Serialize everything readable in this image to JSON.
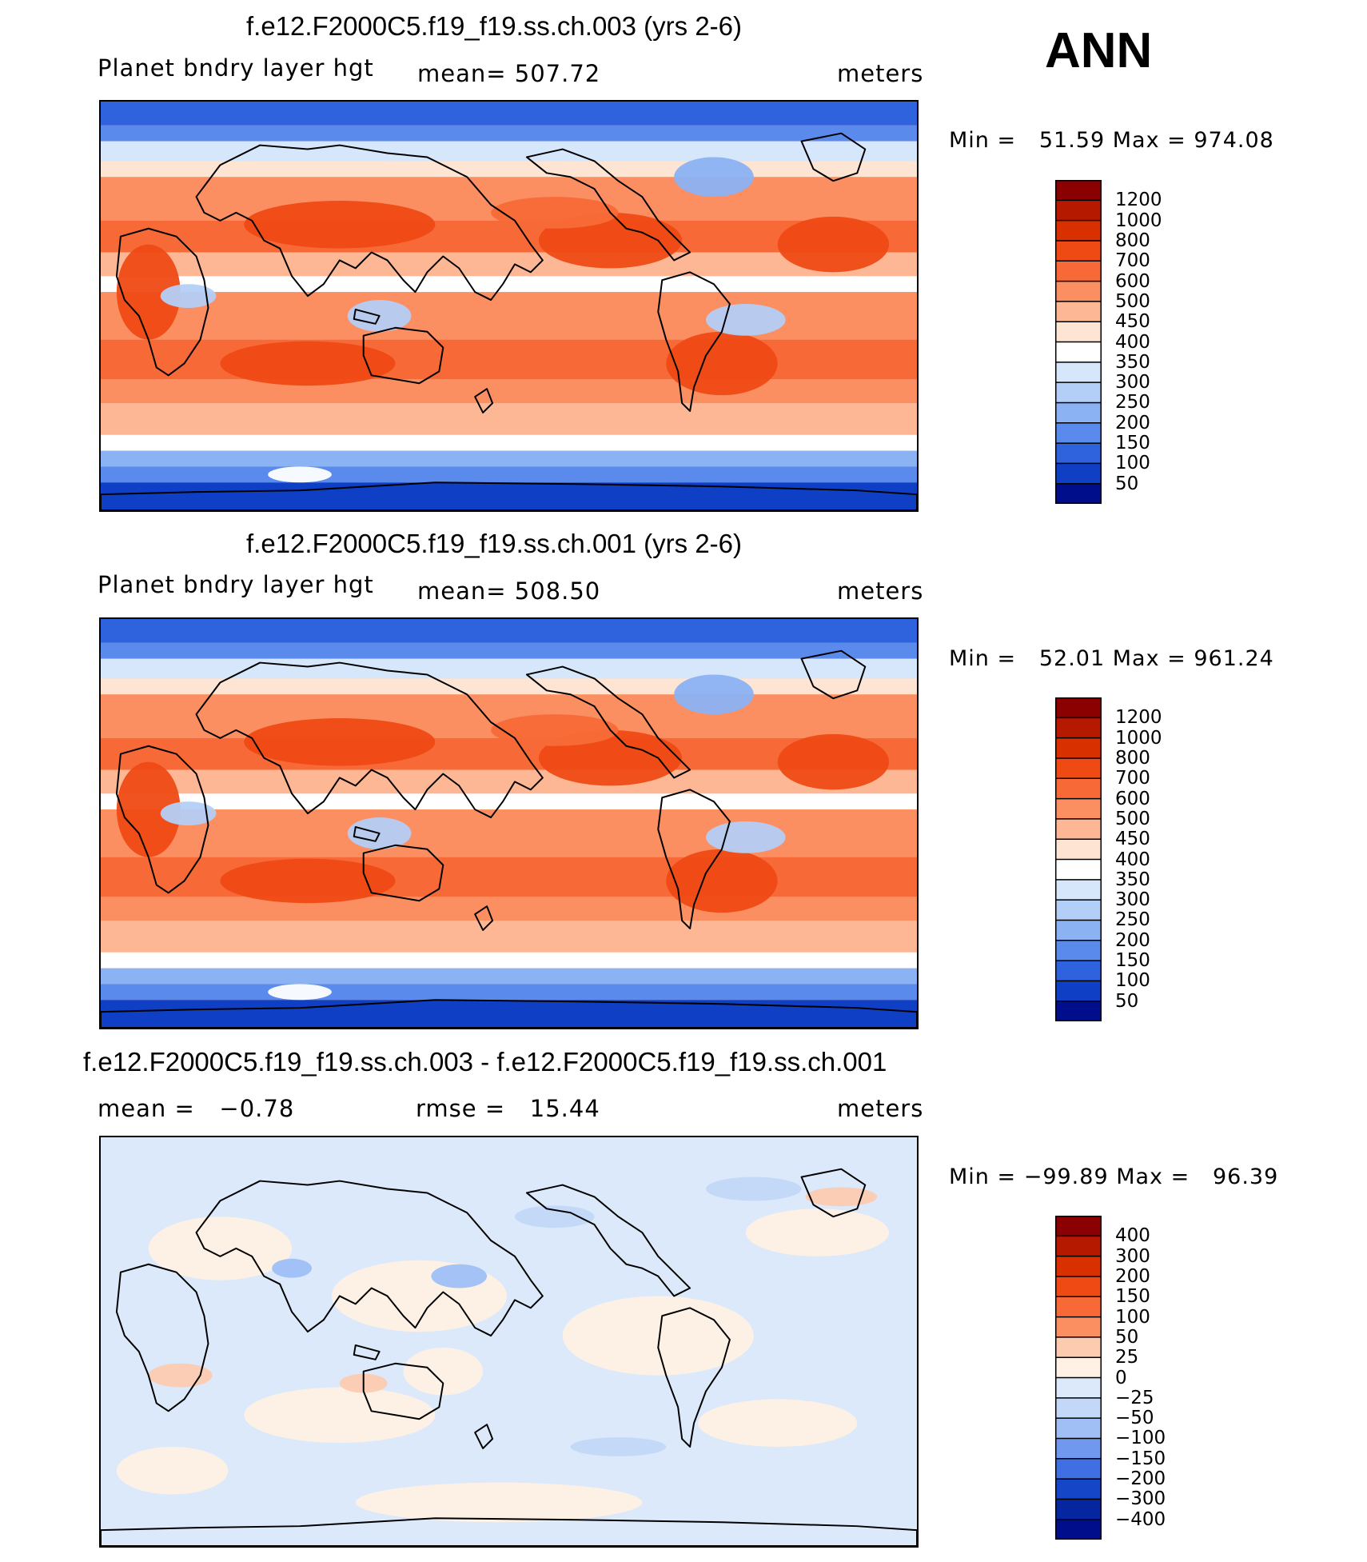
{
  "season": "ANN",
  "chart_data": [
    {
      "type": "heatmap",
      "title": "f.e12.F2000C5.f19_f19.ss.ch.003 (yrs 2-6)",
      "variable": "Planet bndry layer hgt",
      "mean_label": "mean= 507.72",
      "units": "meters",
      "minmax_label": "Min =   51.59 Max = 974.08",
      "min": 51.59,
      "max": 974.08,
      "colorbar_labels": [
        "1200",
        "1000",
        "800",
        "700",
        "600",
        "500",
        "450",
        "400",
        "350",
        "300",
        "250",
        "200",
        "150",
        "100",
        "50"
      ],
      "colorbar_colors": [
        "#8b0000",
        "#b51a00",
        "#d93000",
        "#ef4a14",
        "#f76a37",
        "#fb8f62",
        "#fdb795",
        "#fee4d2",
        "#ffffff",
        "#d6e6fb",
        "#b4cff7",
        "#8bb2f3",
        "#5a8bec",
        "#2f63de",
        "#0e3fc4",
        "#000e8c"
      ],
      "field_style": "absolute"
    },
    {
      "type": "heatmap",
      "title": "f.e12.F2000C5.f19_f19.ss.ch.001 (yrs 2-6)",
      "variable": "Planet bndry layer hgt",
      "mean_label": "mean= 508.50",
      "units": "meters",
      "minmax_label": "Min =   52.01 Max = 961.24",
      "min": 52.01,
      "max": 961.24,
      "colorbar_labels": [
        "1200",
        "1000",
        "800",
        "700",
        "600",
        "500",
        "450",
        "400",
        "350",
        "300",
        "250",
        "200",
        "150",
        "100",
        "50"
      ],
      "colorbar_colors": [
        "#8b0000",
        "#b51a00",
        "#d93000",
        "#ef4a14",
        "#f76a37",
        "#fb8f62",
        "#fdb795",
        "#fee4d2",
        "#ffffff",
        "#d6e6fb",
        "#b4cff7",
        "#8bb2f3",
        "#5a8bec",
        "#2f63de",
        "#0e3fc4",
        "#000e8c"
      ],
      "field_style": "absolute"
    },
    {
      "type": "heatmap",
      "title": "f.e12.F2000C5.f19_f19.ss.ch.003 - f.e12.F2000C5.f19_f19.ss.ch.001",
      "variable": "mean =   −0.78",
      "mean_label": "rmse =   15.44",
      "units": "meters",
      "minmax_label": "Min = −99.89 Max =   96.39",
      "min": -99.89,
      "max": 96.39,
      "colorbar_labels": [
        "400",
        "300",
        "200",
        "150",
        "100",
        "50",
        "25",
        "0",
        "−25",
        "−50",
        "−100",
        "−150",
        "−200",
        "−300",
        "−400"
      ],
      "colorbar_colors": [
        "#8b0000",
        "#b51a00",
        "#d93000",
        "#ef4a14",
        "#f76a37",
        "#fb8f62",
        "#fdcbb0",
        "#fff1e4",
        "#dbe9fa",
        "#c3d8f8",
        "#9fbff5",
        "#6f98ee",
        "#3f6fe2",
        "#1646c8",
        "#05269e",
        "#000e8c"
      ],
      "field_style": "difference"
    }
  ]
}
